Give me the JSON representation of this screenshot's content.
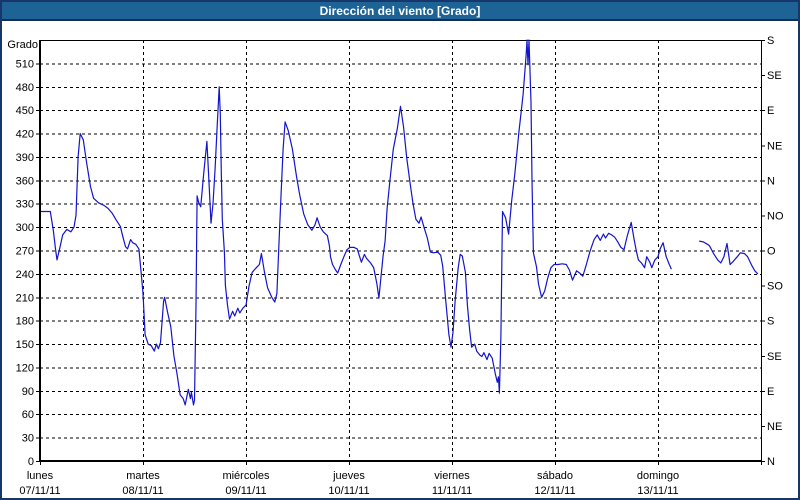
{
  "window": {
    "title": "Dirección del viento [Grado]"
  },
  "colors": {
    "title_bar": "#1E6396",
    "title_text": "#FFFFFF",
    "window_border": "#17376A",
    "plot_frame": "#000000",
    "grid": "#000000",
    "line": "#1414CC",
    "background": "#FFFFFF",
    "label_text": "#000000"
  },
  "chart_data": {
    "type": "line",
    "title": "Dirección del viento [Grado]",
    "ylabel_left": "Grado",
    "ylabel_unit": "Grado",
    "ylim": [
      0,
      540
    ],
    "xlim_days": [
      0,
      7
    ],
    "grid": "dashed",
    "legend_position": "none",
    "y_left_ticks": [
      0,
      30,
      60,
      90,
      120,
      150,
      180,
      210,
      240,
      270,
      300,
      330,
      360,
      390,
      420,
      450,
      480,
      510
    ],
    "y_right_ticks": [
      {
        "value": 0,
        "label": "N"
      },
      {
        "value": 45,
        "label": "NE"
      },
      {
        "value": 90,
        "label": "E"
      },
      {
        "value": 135,
        "label": "SE"
      },
      {
        "value": 180,
        "label": "S"
      },
      {
        "value": 225,
        "label": "SO"
      },
      {
        "value": 270,
        "label": "O"
      },
      {
        "value": 315,
        "label": "NO"
      },
      {
        "value": 360,
        "label": "N"
      },
      {
        "value": 405,
        "label": "NE"
      },
      {
        "value": 450,
        "label": "E"
      },
      {
        "value": 495,
        "label": "SE"
      },
      {
        "value": 540,
        "label": "S"
      }
    ],
    "x_days": [
      {
        "name": "lunes",
        "date": "07/11/11"
      },
      {
        "name": "martes",
        "date": "08/11/11"
      },
      {
        "name": "miércoles",
        "date": "09/11/11"
      },
      {
        "name": "jueves",
        "date": "10/11/11"
      },
      {
        "name": "viernes",
        "date": "11/11/11"
      },
      {
        "name": "sábado",
        "date": "12/11/11"
      },
      {
        "name": "domingo",
        "date": "13/11/11"
      }
    ],
    "series": [
      {
        "name": "Dirección del viento",
        "unit": "grados",
        "x_unit": "days_since_2011-11-07",
        "segments": [
          [
            [
              0.01,
              320
            ],
            [
              0.1,
              320
            ],
            [
              0.13,
              295
            ],
            [
              0.15,
              272
            ],
            [
              0.165,
              258
            ],
            [
              0.19,
              272
            ],
            [
              0.22,
              290
            ],
            [
              0.26,
              297
            ],
            [
              0.3,
              294
            ],
            [
              0.33,
              300
            ],
            [
              0.35,
              315
            ],
            [
              0.37,
              390
            ],
            [
              0.39,
              420
            ],
            [
              0.42,
              412
            ],
            [
              0.45,
              385
            ],
            [
              0.49,
              352
            ],
            [
              0.52,
              337
            ],
            [
              0.57,
              331
            ],
            [
              0.62,
              328
            ],
            [
              0.66,
              324
            ],
            [
              0.7,
              318
            ],
            [
              0.74,
              309
            ],
            [
              0.78,
              301
            ],
            [
              0.81,
              285
            ],
            [
              0.83,
              275
            ],
            [
              0.85,
              272
            ],
            [
              0.88,
              284
            ],
            [
              0.9,
              280
            ],
            [
              0.93,
              278
            ],
            [
              0.96,
              272
            ],
            [
              0.98,
              245
            ],
            [
              1.0,
              215
            ],
            [
              1.02,
              162
            ],
            [
              1.05,
              150
            ],
            [
              1.08,
              148
            ],
            [
              1.11,
              141
            ],
            [
              1.13,
              150
            ],
            [
              1.15,
              144
            ],
            [
              1.17,
              152
            ],
            [
              1.2,
              205
            ],
            [
              1.21,
              210
            ],
            [
              1.24,
              190
            ],
            [
              1.27,
              172
            ],
            [
              1.3,
              135
            ],
            [
              1.33,
              112
            ],
            [
              1.36,
              85
            ],
            [
              1.39,
              80
            ],
            [
              1.41,
              72
            ],
            [
              1.44,
              92
            ],
            [
              1.46,
              80
            ],
            [
              1.47,
              88
            ],
            [
              1.49,
              72
            ],
            [
              1.5,
              78
            ],
            [
              1.515,
              200
            ],
            [
              1.525,
              340
            ],
            [
              1.54,
              332
            ],
            [
              1.56,
              326
            ],
            [
              1.59,
              370
            ],
            [
              1.62,
              410
            ],
            [
              1.64,
              360
            ],
            [
              1.66,
              305
            ],
            [
              1.68,
              330
            ],
            [
              1.7,
              375
            ],
            [
              1.72,
              430
            ],
            [
              1.74,
              480
            ],
            [
              1.75,
              445
            ],
            [
              1.76,
              370
            ],
            [
              1.77,
              310
            ],
            [
              1.79,
              268
            ],
            [
              1.8,
              225
            ],
            [
              1.82,
              200
            ],
            [
              1.84,
              182
            ],
            [
              1.87,
              192
            ],
            [
              1.89,
              186
            ],
            [
              1.92,
              196
            ],
            [
              1.94,
              190
            ],
            [
              1.97,
              196
            ],
            [
              2.0,
              200
            ],
            [
              2.03,
              225
            ],
            [
              2.06,
              242
            ],
            [
              2.1,
              248
            ],
            [
              2.13,
              252
            ],
            [
              2.15,
              266
            ],
            [
              2.18,
              242
            ],
            [
              2.21,
              222
            ],
            [
              2.25,
              210
            ],
            [
              2.28,
              204
            ],
            [
              2.3,
              215
            ],
            [
              2.32,
              280
            ],
            [
              2.34,
              340
            ],
            [
              2.36,
              400
            ],
            [
              2.38,
              435
            ],
            [
              2.41,
              424
            ],
            [
              2.45,
              400
            ],
            [
              2.49,
              365
            ],
            [
              2.52,
              342
            ],
            [
              2.56,
              317
            ],
            [
              2.6,
              303
            ],
            [
              2.64,
              296
            ],
            [
              2.67,
              303
            ],
            [
              2.69,
              312
            ],
            [
              2.72,
              300
            ],
            [
              2.75,
              294
            ],
            [
              2.79,
              289
            ],
            [
              2.81,
              276
            ],
            [
              2.82,
              262
            ],
            [
              2.84,
              252
            ],
            [
              2.87,
              245
            ],
            [
              2.89,
              241
            ],
            [
              2.92,
              252
            ],
            [
              2.95,
              262
            ],
            [
              2.98,
              271
            ],
            [
              3.01,
              274
            ],
            [
              3.05,
              274
            ],
            [
              3.08,
              272
            ],
            [
              3.12,
              255
            ],
            [
              3.15,
              265
            ],
            [
              3.17,
              260
            ],
            [
              3.21,
              254
            ],
            [
              3.24,
              248
            ],
            [
              3.27,
              228
            ],
            [
              3.29,
              209
            ],
            [
              3.31,
              235
            ],
            [
              3.33,
              262
            ],
            [
              3.35,
              282
            ],
            [
              3.37,
              324
            ],
            [
              3.4,
              363
            ],
            [
              3.43,
              400
            ],
            [
              3.47,
              427
            ],
            [
              3.5,
              455
            ],
            [
              3.53,
              428
            ],
            [
              3.56,
              389
            ],
            [
              3.59,
              359
            ],
            [
              3.62,
              331
            ],
            [
              3.65,
              310
            ],
            [
              3.68,
              305
            ],
            [
              3.7,
              313
            ],
            [
              3.73,
              299
            ],
            [
              3.76,
              286
            ],
            [
              3.79,
              268
            ],
            [
              3.82,
              267
            ],
            [
              3.86,
              268
            ],
            [
              3.89,
              264
            ],
            [
              3.91,
              250
            ],
            [
              3.94,
              205
            ],
            [
              3.97,
              162
            ],
            [
              3.99,
              146
            ],
            [
              4.01,
              165
            ],
            [
              4.03,
              205
            ],
            [
              4.06,
              248
            ],
            [
              4.08,
              265
            ],
            [
              4.1,
              263
            ],
            [
              4.13,
              242
            ],
            [
              4.15,
              200
            ],
            [
              4.17,
              170
            ],
            [
              4.19,
              146
            ],
            [
              4.22,
              150
            ],
            [
              4.24,
              141
            ],
            [
              4.27,
              136
            ],
            [
              4.29,
              134
            ],
            [
              4.31,
              139
            ],
            [
              4.34,
              130
            ],
            [
              4.36,
              138
            ],
            [
              4.39,
              132
            ],
            [
              4.42,
              112
            ],
            [
              4.44,
              101
            ],
            [
              4.45,
              108
            ],
            [
              4.46,
              87
            ],
            [
              4.475,
              160
            ],
            [
              4.49,
              320
            ],
            [
              4.52,
              312
            ],
            [
              4.55,
              291
            ],
            [
              4.58,
              334
            ],
            [
              4.61,
              368
            ],
            [
              4.65,
              423
            ],
            [
              4.69,
              470
            ],
            [
              4.72,
              522
            ],
            [
              4.728,
              540
            ],
            [
              4.738,
              508
            ],
            [
              4.748,
              540
            ],
            [
              4.767,
              460
            ],
            [
              4.777,
              360
            ],
            [
              4.79,
              267
            ],
            [
              4.82,
              249
            ],
            [
              4.84,
              227
            ],
            [
              4.87,
              210
            ],
            [
              4.9,
              218
            ],
            [
              4.93,
              235
            ],
            [
              4.96,
              248
            ],
            [
              4.99,
              252
            ],
            [
              5.03,
              252
            ],
            [
              5.07,
              253
            ],
            [
              5.11,
              252
            ],
            [
              5.14,
              245
            ],
            [
              5.17,
              232
            ],
            [
              5.21,
              244
            ],
            [
              5.24,
              241
            ],
            [
              5.27,
              237
            ],
            [
              5.3,
              250
            ],
            [
              5.34,
              269
            ],
            [
              5.38,
              284
            ],
            [
              5.41,
              290
            ],
            [
              5.44,
              283
            ],
            [
              5.47,
              291
            ],
            [
              5.49,
              286
            ],
            [
              5.52,
              292
            ],
            [
              5.55,
              290
            ],
            [
              5.58,
              287
            ],
            [
              5.61,
              281
            ],
            [
              5.64,
              274
            ],
            [
              5.67,
              271
            ],
            [
              5.7,
              288
            ],
            [
              5.74,
              306
            ],
            [
              5.77,
              283
            ],
            [
              5.79,
              269
            ],
            [
              5.81,
              258
            ],
            [
              5.84,
              254
            ],
            [
              5.87,
              248
            ],
            [
              5.89,
              262
            ],
            [
              5.92,
              255
            ],
            [
              5.94,
              248
            ],
            [
              5.97,
              258
            ],
            [
              6.0,
              262
            ],
            [
              6.02,
              272
            ],
            [
              6.05,
              280
            ],
            [
              6.08,
              262
            ],
            [
              6.11,
              252
            ],
            [
              6.13,
              246
            ]
          ],
          [
            [
              6.4,
              282
            ],
            [
              6.44,
              281
            ],
            [
              6.48,
              278
            ],
            [
              6.5,
              276
            ],
            [
              6.54,
              266
            ],
            [
              6.58,
              258
            ],
            [
              6.61,
              254
            ],
            [
              6.64,
              262
            ],
            [
              6.67,
              279
            ],
            [
              6.7,
              252
            ],
            [
              6.73,
              256
            ],
            [
              6.77,
              262
            ],
            [
              6.8,
              267
            ],
            [
              6.84,
              266
            ],
            [
              6.87,
              262
            ],
            [
              6.91,
              251
            ],
            [
              6.94,
              244
            ],
            [
              6.97,
              240
            ]
          ]
        ]
      }
    ]
  }
}
